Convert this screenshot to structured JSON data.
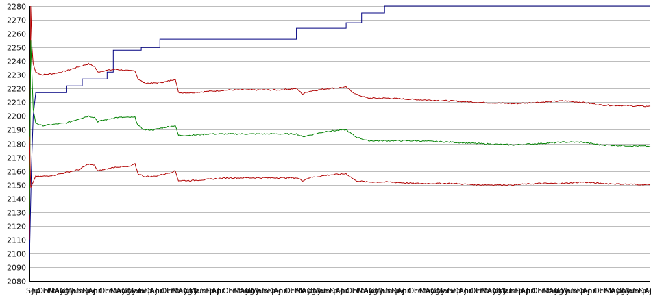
{
  "chart_data": {
    "type": "line",
    "title": "",
    "xlabel": "",
    "ylabel": "",
    "ylim": [
      2080,
      2280
    ],
    "yticks": [
      2080,
      2090,
      2100,
      2110,
      2120,
      2130,
      2140,
      2150,
      2160,
      2170,
      2180,
      2190,
      2200,
      2210,
      2220,
      2230,
      2240,
      2250,
      2260,
      2270,
      2280
    ],
    "xticks": [
      "Sep",
      "Jul",
      "Oct",
      "Feb",
      "May",
      "Aug",
      "Nov",
      "Mar",
      "Jun",
      "Sep",
      "Dec",
      "Apr",
      "Jul",
      "Oct",
      "Feb",
      "May",
      "Aug",
      "Nov",
      "Mar",
      "Jun",
      "Sep",
      "Dec",
      "Apr",
      "Jul",
      "Oct",
      "Feb",
      "May",
      "Aug",
      "Nov",
      "Mar",
      "Jun",
      "Sep",
      "Dec",
      "Apr",
      "Jul",
      "Oct",
      "Feb",
      "May",
      "Aug",
      "Nov",
      "Mar",
      "Jun",
      "Sep",
      "Dec",
      "Apr",
      "Jul",
      "Oct",
      "Feb",
      "May",
      "Aug",
      "Nov",
      "Mar",
      "Jun",
      "Sep",
      "Dec",
      "Apr",
      "Jul",
      "Oct",
      "Feb",
      "May",
      "Aug",
      "Nov",
      "Mar",
      "Jun",
      "Sep",
      "Dec",
      "Apr",
      "Jul",
      "Oct",
      "Feb",
      "May",
      "Aug",
      "Nov",
      "Mar",
      "Jun",
      "Sep",
      "Dec",
      "Apr",
      "Jul",
      "Oct",
      "Feb",
      "May",
      "Aug",
      "Nov",
      "Mar",
      "Jun",
      "Sep",
      "Dec",
      "Apr",
      "Jul",
      "Oct",
      "Feb",
      "May",
      "Aug",
      "Nov",
      "Mar",
      "Jun",
      "Sep",
      "Dec",
      "Apr",
      "Jul",
      "Oct",
      "Feb",
      "May",
      "Aug",
      "Nov",
      "Mar",
      "Jun",
      "Sep",
      "Dec",
      "Apr",
      "Jul"
    ],
    "grid": true,
    "legend": "none",
    "x_count": 1000,
    "series": [
      {
        "color": "#000080",
        "points": [
          [
            0,
            2095
          ],
          [
            3,
            2160
          ],
          [
            6,
            2200
          ],
          [
            10,
            2217
          ],
          [
            60,
            2217
          ],
          [
            60,
            2222
          ],
          [
            85,
            2222
          ],
          [
            85,
            2227
          ],
          [
            125,
            2227
          ],
          [
            125,
            2232
          ],
          [
            135,
            2232
          ],
          [
            135,
            2248
          ],
          [
            180,
            2248
          ],
          [
            180,
            2250
          ],
          [
            210,
            2250
          ],
          [
            210,
            2256
          ],
          [
            430,
            2256
          ],
          [
            430,
            2264
          ],
          [
            510,
            2264
          ],
          [
            510,
            2268
          ],
          [
            535,
            2268
          ],
          [
            535,
            2275
          ],
          [
            572,
            2275
          ],
          [
            572,
            2280
          ],
          [
            1000,
            2280
          ]
        ]
      },
      {
        "color": "#b00000",
        "points": [
          [
            0,
            2110
          ],
          [
            2,
            2280
          ],
          [
            4,
            2250
          ],
          [
            6,
            2238
          ],
          [
            10,
            2232
          ],
          [
            20,
            2230
          ],
          [
            40,
            2231
          ],
          [
            60,
            2233
          ],
          [
            80,
            2236
          ],
          [
            95,
            2238
          ],
          [
            105,
            2236
          ],
          [
            110,
            2232
          ],
          [
            120,
            2233
          ],
          [
            140,
            2234
          ],
          [
            160,
            2233
          ],
          [
            170,
            2233
          ],
          [
            175,
            2227
          ],
          [
            185,
            2224
          ],
          [
            200,
            2224
          ],
          [
            220,
            2225
          ],
          [
            235,
            2227
          ],
          [
            240,
            2217
          ],
          [
            260,
            2217
          ],
          [
            290,
            2218
          ],
          [
            320,
            2219
          ],
          [
            360,
            2219
          ],
          [
            400,
            2219
          ],
          [
            430,
            2220
          ],
          [
            440,
            2216
          ],
          [
            450,
            2218
          ],
          [
            480,
            2220
          ],
          [
            510,
            2221
          ],
          [
            525,
            2216
          ],
          [
            545,
            2213
          ],
          [
            580,
            2213
          ],
          [
            620,
            2212
          ],
          [
            680,
            2211
          ],
          [
            720,
            2210
          ],
          [
            780,
            2209
          ],
          [
            820,
            2210
          ],
          [
            860,
            2211
          ],
          [
            890,
            2210
          ],
          [
            920,
            2208
          ],
          [
            1000,
            2207
          ]
        ]
      },
      {
        "color": "#008000",
        "points": [
          [
            0,
            2128
          ],
          [
            2,
            2255
          ],
          [
            4,
            2230
          ],
          [
            6,
            2205
          ],
          [
            10,
            2195
          ],
          [
            20,
            2193
          ],
          [
            40,
            2194
          ],
          [
            60,
            2195
          ],
          [
            80,
            2198
          ],
          [
            95,
            2200
          ],
          [
            105,
            2199
          ],
          [
            110,
            2196
          ],
          [
            120,
            2197
          ],
          [
            140,
            2199
          ],
          [
            160,
            2199
          ],
          [
            170,
            2199
          ],
          [
            175,
            2193
          ],
          [
            185,
            2190
          ],
          [
            200,
            2190
          ],
          [
            220,
            2192
          ],
          [
            235,
            2193
          ],
          [
            240,
            2186
          ],
          [
            260,
            2186
          ],
          [
            290,
            2187
          ],
          [
            320,
            2187
          ],
          [
            360,
            2187
          ],
          [
            400,
            2187
          ],
          [
            430,
            2187
          ],
          [
            440,
            2185
          ],
          [
            450,
            2186
          ],
          [
            480,
            2189
          ],
          [
            510,
            2190
          ],
          [
            525,
            2185
          ],
          [
            545,
            2182
          ],
          [
            580,
            2182
          ],
          [
            620,
            2182
          ],
          [
            680,
            2181
          ],
          [
            720,
            2180
          ],
          [
            780,
            2179
          ],
          [
            820,
            2180
          ],
          [
            860,
            2181
          ],
          [
            890,
            2181
          ],
          [
            920,
            2179
          ],
          [
            1000,
            2178
          ]
        ]
      },
      {
        "color": "#b00000",
        "points": [
          [
            0,
            2185
          ],
          [
            2,
            2148
          ],
          [
            4,
            2150
          ],
          [
            6,
            2152
          ],
          [
            10,
            2156
          ],
          [
            20,
            2156
          ],
          [
            40,
            2157
          ],
          [
            60,
            2159
          ],
          [
            80,
            2161
          ],
          [
            95,
            2165
          ],
          [
            105,
            2164
          ],
          [
            110,
            2160
          ],
          [
            120,
            2161
          ],
          [
            140,
            2163
          ],
          [
            160,
            2163
          ],
          [
            170,
            2165
          ],
          [
            175,
            2158
          ],
          [
            185,
            2156
          ],
          [
            200,
            2156
          ],
          [
            220,
            2158
          ],
          [
            235,
            2160
          ],
          [
            240,
            2153
          ],
          [
            260,
            2153
          ],
          [
            290,
            2154
          ],
          [
            320,
            2155
          ],
          [
            360,
            2155
          ],
          [
            400,
            2155
          ],
          [
            430,
            2155
          ],
          [
            440,
            2153
          ],
          [
            450,
            2155
          ],
          [
            480,
            2157
          ],
          [
            510,
            2158
          ],
          [
            525,
            2153
          ],
          [
            545,
            2152
          ],
          [
            580,
            2152
          ],
          [
            620,
            2151
          ],
          [
            680,
            2151
          ],
          [
            720,
            2150
          ],
          [
            780,
            2150
          ],
          [
            820,
            2151
          ],
          [
            860,
            2151
          ],
          [
            890,
            2152
          ],
          [
            920,
            2151
          ],
          [
            1000,
            2150
          ]
        ]
      }
    ]
  }
}
